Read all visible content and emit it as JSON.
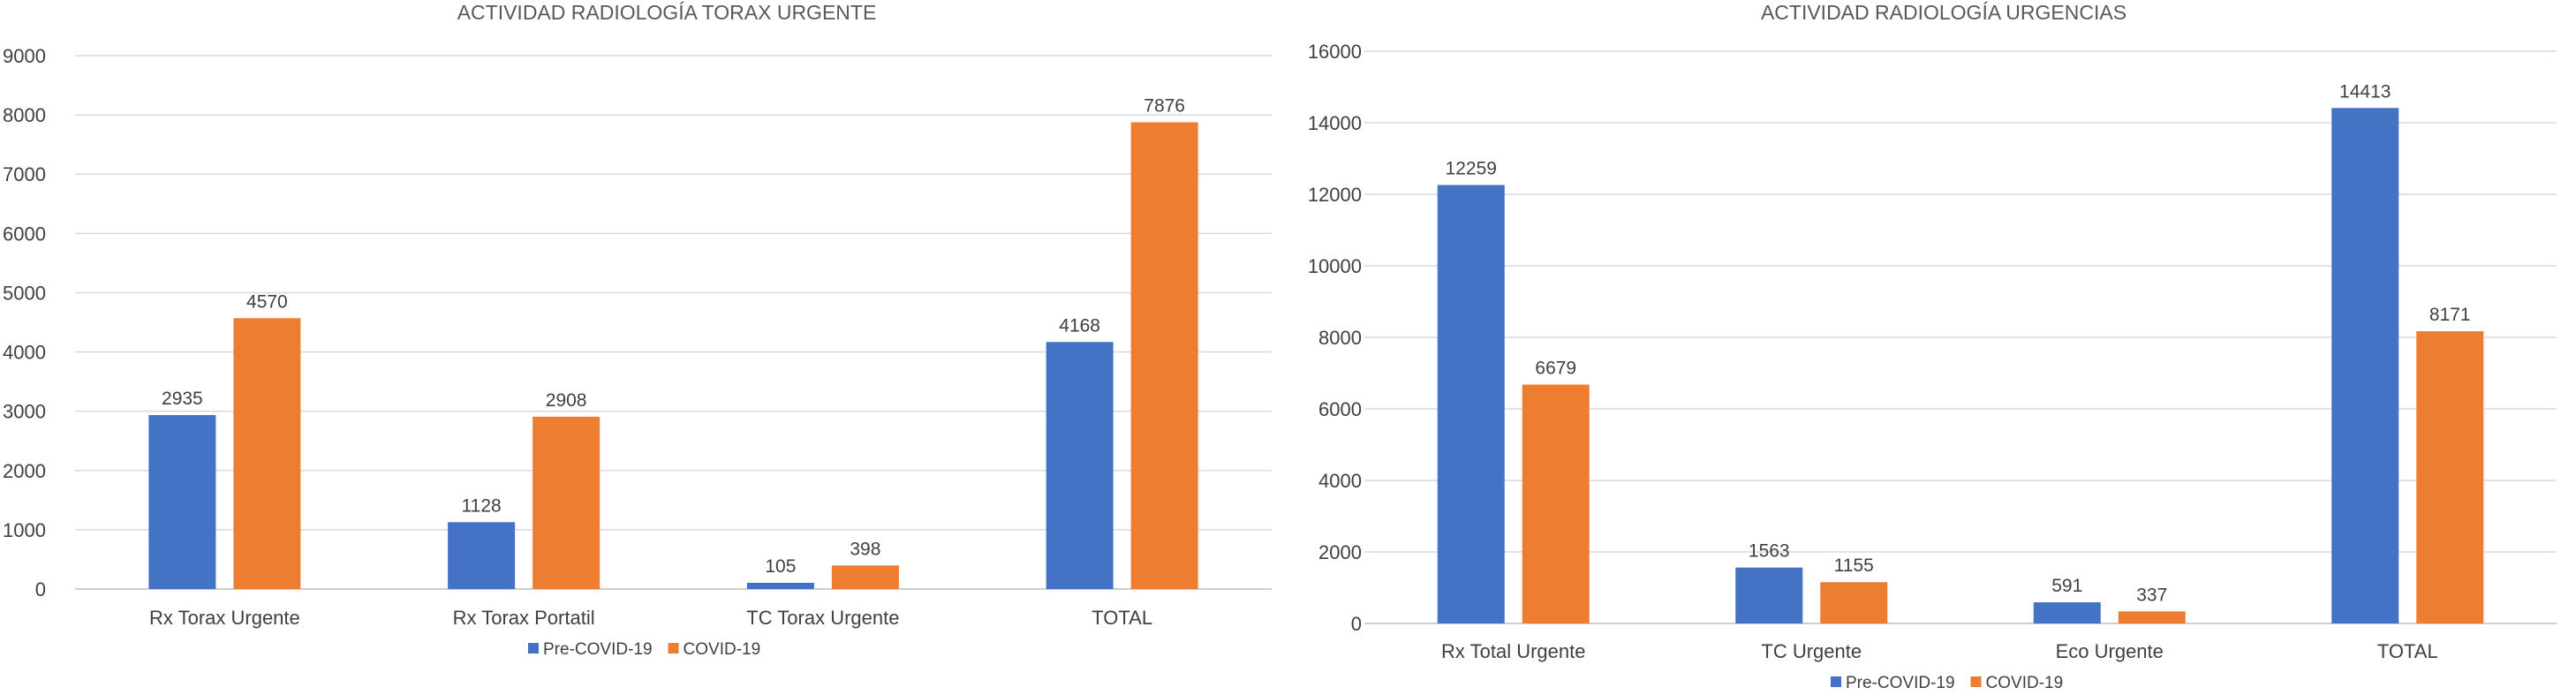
{
  "colors": {
    "pre": "#4472C4",
    "covid": "#ED7D31"
  },
  "chart_data": [
    {
      "type": "bar",
      "title": "ACTIVIDAD RADIOLOGÍA TORAX URGENTE",
      "categories": [
        "Rx Torax Urgente",
        "Rx Torax Portatil",
        "TC Torax Urgente",
        "TOTAL"
      ],
      "series": [
        {
          "name": "Pre-COVID-19",
          "values": [
            2935,
            1128,
            105,
            4168
          ]
        },
        {
          "name": "COVID-19",
          "values": [
            4570,
            2908,
            398,
            7876
          ]
        }
      ],
      "ylim": [
        0,
        9000
      ],
      "yticks": [
        0,
        1000,
        2000,
        3000,
        4000,
        5000,
        6000,
        7000,
        8000,
        9000
      ],
      "grid": true,
      "legend": "bottom"
    },
    {
      "type": "bar",
      "title": "ACTIVIDAD RADIOLOGÍA URGENCIAS",
      "categories": [
        "Rx Total Urgente",
        "TC Urgente",
        "Eco Urgente",
        "TOTAL"
      ],
      "series": [
        {
          "name": "Pre-COVID-19",
          "values": [
            12259,
            1563,
            591,
            14413
          ]
        },
        {
          "name": "COVID-19",
          "values": [
            6679,
            1155,
            337,
            8171
          ]
        }
      ],
      "ylim": [
        0,
        16000
      ],
      "yticks": [
        0,
        2000,
        4000,
        6000,
        8000,
        10000,
        12000,
        14000,
        16000
      ],
      "grid": true,
      "legend": "bottom"
    }
  ]
}
